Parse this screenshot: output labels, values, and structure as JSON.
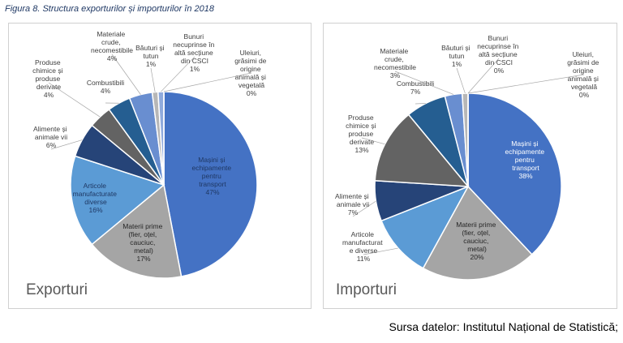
{
  "title": "Figura 8. Structura exporturilor și importurilor în 2018",
  "source": "Sursa datelor: Institutul Național de Statistică;",
  "chart_data": [
    {
      "type": "pie",
      "title": "Exporturi",
      "categories": [
        "Mașini și echipamente pentru transport",
        "Materii prime (fier, oțel, cauciuc, metal)",
        "Articole manufacturate diverse",
        "Alimente și animale vii",
        "Produse chimice și produse derivate",
        "Combustibili",
        "Materiale crude, necomestibile",
        "Băuturi și tutun",
        "Bunuri necuprinse în altă secțiune din CSCI",
        "Uleiuri, grăsimi de origine animală și vegetală"
      ],
      "values": [
        47,
        17,
        16,
        6,
        4,
        4,
        4,
        1,
        1,
        0
      ],
      "value_labels": [
        "47%",
        "17%",
        "16%",
        "6%",
        "4%",
        "4%",
        "4%",
        "1%",
        "1%",
        "0%"
      ],
      "colors": [
        "#4472c4",
        "#a5a5a5",
        "#5b9bd5",
        "#264478",
        "#636363",
        "#255e91",
        "#698ed0",
        "#b7b7b7",
        "#8faadc",
        "#327dc2"
      ]
    },
    {
      "type": "pie",
      "title": "Importuri",
      "categories": [
        "Mașini și echipamente pentru transport",
        "Materii prime (fier, oțel, cauciuc, metal)",
        "Articole manufacturat e diverse",
        "Alimente și animale vii",
        "Produse chimice și produse derivate",
        "Combustibili",
        "Materiale crude, necomestibile",
        "Băuturi și tutun",
        "Bunuri necuprinse în altă secțiune din CSCI",
        "Uleiuri, grăsimi de origine animală și vegetală"
      ],
      "values": [
        38,
        20,
        11,
        7,
        13,
        7,
        3,
        1,
        0,
        0
      ],
      "value_labels": [
        "38%",
        "20%",
        "11%",
        "7%",
        "13%",
        "7%",
        "3%",
        "1%",
        "0%",
        "0%"
      ],
      "colors": [
        "#4472c4",
        "#a5a5a5",
        "#5b9bd5",
        "#264478",
        "#636363",
        "#255e91",
        "#698ed0",
        "#b7b7b7",
        "#8faadc",
        "#327dc2"
      ]
    }
  ]
}
